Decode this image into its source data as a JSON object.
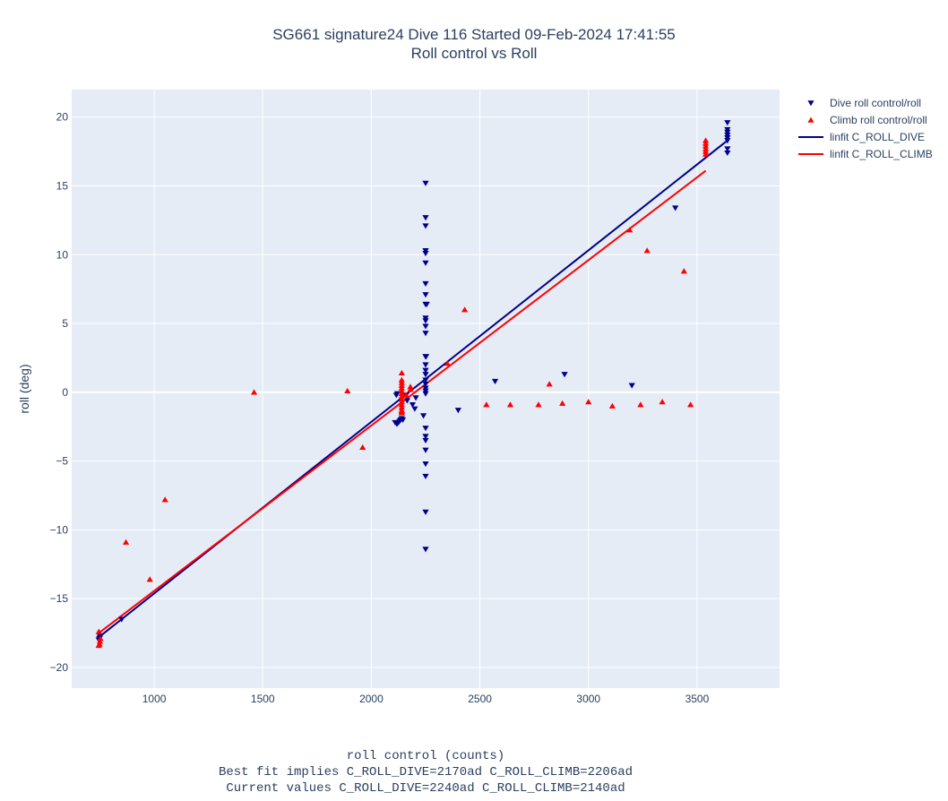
{
  "chart_data": {
    "type": "scatter",
    "title": "SG661 signature24 Dive 116 Started 09-Feb-2024 17:41:55",
    "subtitle": "Roll control vs Roll",
    "xlabel": "roll control (counts)",
    "xlabel_notes": [
      "Best fit implies C_ROLL_DIVE=2170ad C_ROLL_CLIMB=2206ad",
      "Current values C_ROLL_DIVE=2240ad C_ROLL_CLIMB=2140ad"
    ],
    "ylabel": "roll (deg)",
    "xlim": [
      620,
      3880
    ],
    "ylim": [
      -21.5,
      22
    ],
    "xticks": [
      1000,
      1500,
      2000,
      2500,
      3000,
      3500
    ],
    "yticks": [
      -20,
      -15,
      -10,
      -5,
      0,
      5,
      10,
      15,
      20
    ],
    "ytick_labels": [
      "−20",
      "−15",
      "−10",
      "−5",
      "0",
      "5",
      "10",
      "15",
      "20"
    ],
    "grid": true,
    "legend_position": "top-right",
    "series": [
      {
        "name": "Dive roll control/roll",
        "kind": "scatter",
        "marker": "triangle-down",
        "color": "#00008b",
        "points": [
          [
            745,
            -18.0
          ],
          [
            748,
            -17.9
          ],
          [
            750,
            -17.8
          ],
          [
            752,
            -17.7
          ],
          [
            850,
            -16.5
          ],
          [
            2110,
            -2.2
          ],
          [
            2118,
            -2.3
          ],
          [
            2125,
            -2.2
          ],
          [
            2130,
            -2.1
          ],
          [
            2135,
            -2.0
          ],
          [
            2140,
            -1.9
          ],
          [
            2145,
            -2.0
          ],
          [
            2115,
            -0.2
          ],
          [
            2120,
            -0.1
          ],
          [
            2160,
            -0.2
          ],
          [
            2165,
            -0.6
          ],
          [
            2190,
            -0.9
          ],
          [
            2200,
            -1.2
          ],
          [
            2205,
            -0.4
          ],
          [
            2240,
            -1.7
          ],
          [
            2250,
            15.2
          ],
          [
            2250,
            12.7
          ],
          [
            2250,
            12.1
          ],
          [
            2250,
            10.3
          ],
          [
            2250,
            10.1
          ],
          [
            2250,
            9.4
          ],
          [
            2250,
            7.9
          ],
          [
            2250,
            7.1
          ],
          [
            2250,
            6.4
          ],
          [
            2255,
            6.4
          ],
          [
            2250,
            5.4
          ],
          [
            2250,
            5.2
          ],
          [
            2250,
            4.8
          ],
          [
            2250,
            4.3
          ],
          [
            2250,
            2.6
          ],
          [
            2252,
            2.6
          ],
          [
            2250,
            2.0
          ],
          [
            2250,
            1.6
          ],
          [
            2250,
            1.3
          ],
          [
            2250,
            0.9
          ],
          [
            2250,
            0.6
          ],
          [
            2250,
            0.3
          ],
          [
            2250,
            0.1
          ],
          [
            2250,
            -0.1
          ],
          [
            2250,
            -2.6
          ],
          [
            2250,
            -3.2
          ],
          [
            2250,
            -3.5
          ],
          [
            2250,
            -4.2
          ],
          [
            2250,
            -5.2
          ],
          [
            2250,
            -6.1
          ],
          [
            2250,
            -8.7
          ],
          [
            2250,
            -11.4
          ],
          [
            2400,
            -1.3
          ],
          [
            2570,
            0.8
          ],
          [
            2890,
            1.3
          ],
          [
            3200,
            0.5
          ],
          [
            3400,
            13.4
          ],
          [
            3640,
            19.6
          ],
          [
            3640,
            19.1
          ],
          [
            3640,
            18.9
          ],
          [
            3640,
            18.7
          ],
          [
            3640,
            18.5
          ],
          [
            3640,
            18.3
          ],
          [
            3640,
            17.7
          ],
          [
            3640,
            17.4
          ]
        ]
      },
      {
        "name": "Climb roll control/roll",
        "kind": "scatter",
        "marker": "triangle-up",
        "color": "#ff0000",
        "points": [
          [
            745,
            -17.4
          ],
          [
            745,
            -18.4
          ],
          [
            748,
            -18.3
          ],
          [
            750,
            -18.1
          ],
          [
            752,
            -17.9
          ],
          [
            870,
            -10.9
          ],
          [
            980,
            -13.6
          ],
          [
            1050,
            -7.8
          ],
          [
            1460,
            0.0
          ],
          [
            1890,
            0.1
          ],
          [
            1960,
            -4.0
          ],
          [
            2140,
            1.4
          ],
          [
            2140,
            0.9
          ],
          [
            2140,
            0.7
          ],
          [
            2140,
            0.5
          ],
          [
            2140,
            0.3
          ],
          [
            2140,
            0.1
          ],
          [
            2140,
            -0.1
          ],
          [
            2140,
            -0.3
          ],
          [
            2140,
            -0.5
          ],
          [
            2140,
            -0.7
          ],
          [
            2140,
            -0.9
          ],
          [
            2140,
            -1.1
          ],
          [
            2140,
            -1.3
          ],
          [
            2140,
            -1.4
          ],
          [
            2140,
            -1.5
          ],
          [
            2160,
            -0.2
          ],
          [
            2180,
            0.4
          ],
          [
            2180,
            0.2
          ],
          [
            2350,
            2.1
          ],
          [
            2430,
            6.0
          ],
          [
            2530,
            -0.9
          ],
          [
            2640,
            -0.9
          ],
          [
            2770,
            -0.9
          ],
          [
            2820,
            0.6
          ],
          [
            2880,
            -0.8
          ],
          [
            3000,
            -0.7
          ],
          [
            3110,
            -1.0
          ],
          [
            3190,
            11.8
          ],
          [
            3240,
            -0.9
          ],
          [
            3270,
            10.3
          ],
          [
            3340,
            -0.7
          ],
          [
            3440,
            8.8
          ],
          [
            3470,
            -0.9
          ],
          [
            3540,
            18.3
          ],
          [
            3540,
            18.1
          ],
          [
            3540,
            17.9
          ],
          [
            3540,
            17.7
          ],
          [
            3540,
            17.5
          ],
          [
            3540,
            17.3
          ]
        ]
      },
      {
        "name": "linfit C_ROLL_DIVE",
        "kind": "line",
        "color": "#00008b",
        "points": [
          [
            745,
            -17.8
          ],
          [
            3640,
            18.3
          ]
        ]
      },
      {
        "name": "linfit C_ROLL_CLIMB",
        "kind": "line",
        "color": "#ff0000",
        "points": [
          [
            745,
            -17.5
          ],
          [
            3540,
            16.1
          ]
        ]
      }
    ]
  }
}
